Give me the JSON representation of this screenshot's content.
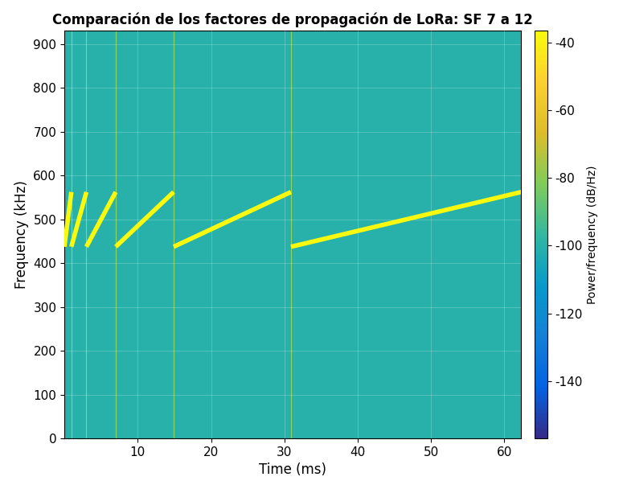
{
  "chart_data": {
    "type": "spectrogram",
    "title": "Comparación de los factores de propagación de LoRa: SF 7 a 12",
    "x_label": "Time (ms)",
    "y_label": "Frequency (kHz)",
    "xlim": [
      0,
      62.3
    ],
    "xticks": [
      10,
      20,
      30,
      40,
      50,
      60
    ],
    "ylim": [
      0,
      931
    ],
    "yticks": [
      0,
      100,
      200,
      300,
      400,
      500,
      600,
      700,
      800,
      900
    ],
    "grid": true,
    "background_level": -100,
    "segments": [
      {
        "x": [
          0,
          0.95
        ],
        "y": [
          437.5,
          562.5
        ],
        "level": -37
      },
      {
        "x": [
          0.95,
          3.0
        ],
        "y": [
          437.5,
          562.5
        ],
        "level": -37
      },
      {
        "x": [
          3.0,
          7.0
        ],
        "y": [
          437.5,
          562.5
        ],
        "level": -37
      },
      {
        "x": [
          7.0,
          14.9
        ],
        "y": [
          437.5,
          562.5
        ],
        "level": -37
      },
      {
        "x": [
          14.9,
          30.9
        ],
        "y": [
          437.5,
          562.5
        ],
        "level": -37
      },
      {
        "x": [
          30.9,
          62.3
        ],
        "y": [
          437.5,
          562.5
        ],
        "level": -37
      }
    ],
    "colorbar": {
      "label": "Power/frequency (dB/Hz)",
      "range": [
        -157,
        -36.4
      ],
      "ticks": [
        -140,
        -120,
        -100,
        -80,
        -60,
        -40
      ]
    }
  }
}
